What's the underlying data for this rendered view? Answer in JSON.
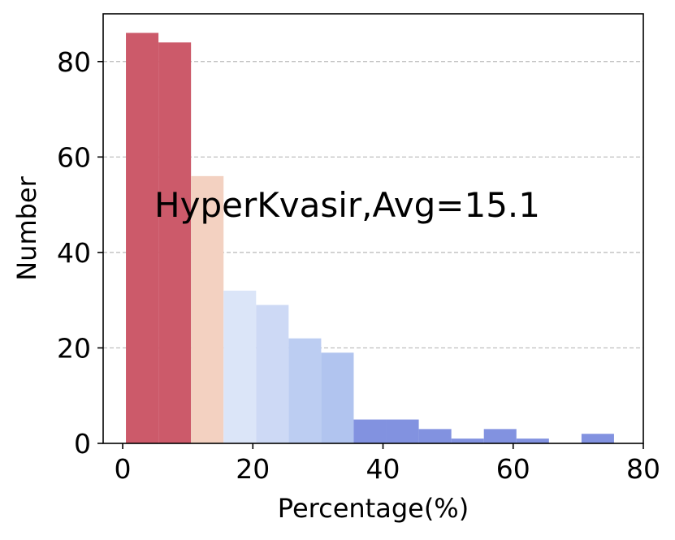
{
  "chart_data": {
    "type": "bar",
    "title": "",
    "xlabel": "Percentage(%)",
    "ylabel": "Number",
    "xlim": [
      -3,
      80
    ],
    "ylim": [
      0,
      90
    ],
    "x_ticks": [
      0,
      20,
      40,
      60,
      80
    ],
    "y_ticks": [
      0,
      20,
      40,
      60,
      80
    ],
    "grid": "horizontal-dashed",
    "annotation": "HyperKvasir,Avg=15.1",
    "bins": [
      {
        "start": 0.5,
        "end": 5.5,
        "value": 86,
        "color": "#cc5a6a"
      },
      {
        "start": 5.5,
        "end": 10.5,
        "value": 84,
        "color": "#cc5a6a"
      },
      {
        "start": 10.5,
        "end": 15.5,
        "value": 56,
        "color": "#f3d1c1"
      },
      {
        "start": 15.5,
        "end": 20.5,
        "value": 32,
        "color": "#dbe5f8"
      },
      {
        "start": 20.5,
        "end": 25.5,
        "value": 29,
        "color": "#cdd9f5"
      },
      {
        "start": 25.5,
        "end": 30.5,
        "value": 22,
        "color": "#bccdf2"
      },
      {
        "start": 30.5,
        "end": 35.5,
        "value": 19,
        "color": "#b1c4ef"
      },
      {
        "start": 35.5,
        "end": 40.5,
        "value": 5,
        "color": "#8292e0"
      },
      {
        "start": 40.5,
        "end": 45.5,
        "value": 5,
        "color": "#8292e0"
      },
      {
        "start": 45.5,
        "end": 50.5,
        "value": 3,
        "color": "#8292e0"
      },
      {
        "start": 50.5,
        "end": 55.5,
        "value": 1,
        "color": "#8292e0"
      },
      {
        "start": 55.5,
        "end": 60.5,
        "value": 3,
        "color": "#8292e0"
      },
      {
        "start": 60.5,
        "end": 65.5,
        "value": 1,
        "color": "#8292e0"
      },
      {
        "start": 65.5,
        "end": 70.5,
        "value": 0,
        "color": "#8292e0"
      },
      {
        "start": 70.5,
        "end": 75.5,
        "value": 2,
        "color": "#8292e0"
      }
    ]
  }
}
